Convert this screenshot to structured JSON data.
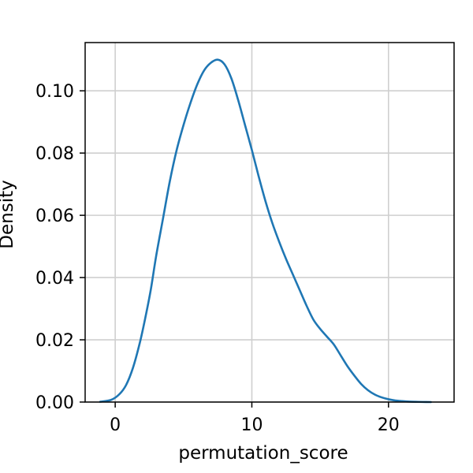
{
  "chart_data": {
    "type": "line",
    "title": "",
    "xlabel": "permutation_score",
    "ylabel": "Density",
    "xlim": [
      -2.2,
      24.8
    ],
    "ylim": [
      0.0,
      0.1155
    ],
    "grid": true,
    "x_ticks": [
      0,
      10,
      20
    ],
    "x_tick_labels": [
      "0",
      "10",
      "20"
    ],
    "y_ticks": [
      0.0,
      0.02,
      0.04,
      0.06,
      0.08,
      0.1
    ],
    "y_tick_labels": [
      "0.00",
      "0.02",
      "0.04",
      "0.06",
      "0.08",
      "0.10"
    ],
    "series": [
      {
        "color": "#1f77b4",
        "x": [
          -1.1,
          -0.3,
          0.3,
          0.8,
          1.3,
          1.8,
          2.2,
          2.6,
          3.0,
          3.5,
          4.0,
          4.5,
          5.0,
          5.5,
          6.0,
          6.5,
          7.0,
          7.5,
          8.0,
          8.5,
          9.0,
          9.5,
          10.0,
          10.5,
          11.0,
          11.5,
          12.0,
          12.5,
          13.0,
          13.5,
          14.0,
          14.5,
          15.0,
          15.5,
          16.0,
          16.5,
          17.0,
          17.5,
          18.0,
          18.5,
          19.0,
          19.5,
          20.0,
          20.5,
          21.0,
          21.5,
          22.0,
          22.5,
          23.1
        ],
        "y": [
          0.0001,
          0.0007,
          0.0025,
          0.0055,
          0.011,
          0.019,
          0.027,
          0.036,
          0.047,
          0.059,
          0.071,
          0.081,
          0.089,
          0.096,
          0.102,
          0.1065,
          0.109,
          0.11,
          0.1085,
          0.104,
          0.097,
          0.089,
          0.081,
          0.0725,
          0.0645,
          0.0575,
          0.0515,
          0.046,
          0.041,
          0.036,
          0.031,
          0.0265,
          0.0235,
          0.021,
          0.0185,
          0.015,
          0.0115,
          0.0085,
          0.0058,
          0.0038,
          0.0024,
          0.0015,
          0.0009,
          0.0005,
          0.0003,
          0.00015,
          8e-05,
          3e-05,
          0.0
        ]
      }
    ]
  }
}
